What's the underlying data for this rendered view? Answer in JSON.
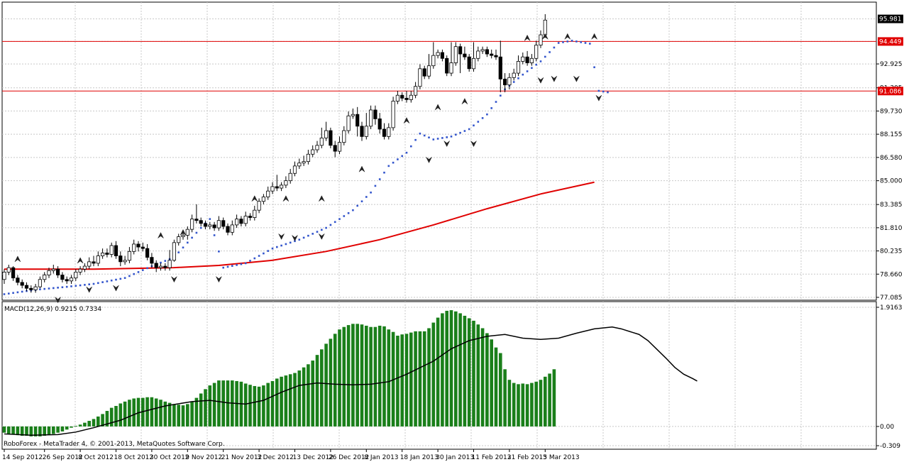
{
  "chart_data": {
    "type": "candlestick",
    "main": {
      "y_ticks": [
        "77.085",
        "78.660",
        "80.235",
        "81.810",
        "83.385",
        "85.000",
        "86.580",
        "88.155",
        "89.730",
        "91.305",
        "92.925",
        "94.449",
        "95.981"
      ],
      "ylim": [
        77.085,
        96.3
      ],
      "levels": [
        {
          "price": 94.449,
          "label": "94.449"
        },
        {
          "price": 91.086,
          "label": "91.086"
        }
      ],
      "current_price": {
        "price": 95.981,
        "label": "95.981"
      },
      "ma_color": "#e00000",
      "sar_color": "#3355cc",
      "level_color": "#e00000",
      "ma": [
        [
          0,
          79.0
        ],
        [
          20,
          79.0
        ],
        [
          38,
          79.1
        ],
        [
          48,
          79.25
        ],
        [
          60,
          79.6
        ],
        [
          72,
          80.2
        ],
        [
          84,
          81.0
        ],
        [
          96,
          82.0
        ],
        [
          108,
          83.1
        ],
        [
          120,
          84.1
        ],
        [
          132,
          84.9
        ]
      ],
      "sar": [
        [
          0,
          77.3
        ],
        [
          7,
          77.6
        ],
        [
          14,
          77.8
        ],
        [
          20,
          78.0
        ],
        [
          27,
          78.4
        ],
        [
          33,
          79.2
        ],
        [
          38,
          79.8
        ],
        [
          41,
          80.8
        ],
        [
          44,
          81.8
        ],
        [
          46,
          82.4
        ],
        [
          49,
          79.1
        ],
        [
          54,
          79.4
        ],
        [
          60,
          80.4
        ],
        [
          66,
          81.0
        ],
        [
          72,
          81.8
        ],
        [
          78,
          83.0
        ],
        [
          82,
          84.2
        ],
        [
          86,
          86.0
        ],
        [
          90,
          86.9
        ],
        [
          93,
          88.2
        ],
        [
          96,
          87.8
        ],
        [
          100,
          88.0
        ],
        [
          104,
          88.5
        ],
        [
          108,
          89.5
        ],
        [
          112,
          91.2
        ],
        [
          116,
          92.2
        ],
        [
          120,
          93.1
        ],
        [
          124,
          94.35
        ],
        [
          127,
          94.5
        ],
        [
          131,
          94.3
        ],
        [
          133,
          91.1
        ],
        [
          135,
          91.0
        ]
      ],
      "candles": [
        [
          78.3,
          78.8,
          78.0,
          79.0
        ],
        [
          78.8,
          79.1,
          78.6,
          79.3
        ],
        [
          79.1,
          78.4,
          78.2,
          79.2
        ],
        [
          78.4,
          78.1,
          77.9,
          78.6
        ],
        [
          78.1,
          77.9,
          77.7,
          78.3
        ],
        [
          77.9,
          77.7,
          77.5,
          78.1
        ],
        [
          77.7,
          77.6,
          77.4,
          77.9
        ],
        [
          77.6,
          77.8,
          77.4,
          78.0
        ],
        [
          77.8,
          78.3,
          77.7,
          78.5
        ],
        [
          78.3,
          78.6,
          78.1,
          78.8
        ],
        [
          78.6,
          78.9,
          78.4,
          79.1
        ],
        [
          78.9,
          79.0,
          78.7,
          79.3
        ],
        [
          79.0,
          78.6,
          78.4,
          79.2
        ],
        [
          78.6,
          78.3,
          78.1,
          78.8
        ],
        [
          78.3,
          78.2,
          78.0,
          78.5
        ],
        [
          78.2,
          78.4,
          78.0,
          78.6
        ],
        [
          78.4,
          78.8,
          78.2,
          79.0
        ],
        [
          78.8,
          79.0,
          78.6,
          79.2
        ],
        [
          79.0,
          79.2,
          78.8,
          79.4
        ],
        [
          79.2,
          79.5,
          79.0,
          79.8
        ],
        [
          79.5,
          79.4,
          79.2,
          79.9
        ],
        [
          79.4,
          79.9,
          79.2,
          80.2
        ],
        [
          79.9,
          80.1,
          79.7,
          80.4
        ],
        [
          80.1,
          80.0,
          79.8,
          80.4
        ],
        [
          80.0,
          80.6,
          79.8,
          80.8
        ],
        [
          80.6,
          79.9,
          79.7,
          80.9
        ],
        [
          79.9,
          79.5,
          79.2,
          80.2
        ],
        [
          79.5,
          79.6,
          79.3,
          79.9
        ],
        [
          79.6,
          80.2,
          79.4,
          80.5
        ],
        [
          80.2,
          80.7,
          80.0,
          81.0
        ],
        [
          80.7,
          80.5,
          80.2,
          80.9
        ],
        [
          80.5,
          80.4,
          80.2,
          80.8
        ],
        [
          80.4,
          79.8,
          79.6,
          80.7
        ],
        [
          79.8,
          79.4,
          79.1,
          80.1
        ],
        [
          79.4,
          79.1,
          78.8,
          79.6
        ],
        [
          79.1,
          79.2,
          78.9,
          79.4
        ],
        [
          79.2,
          79.1,
          78.9,
          79.4
        ],
        [
          79.1,
          79.6,
          78.9,
          80.3
        ],
        [
          79.6,
          80.8,
          79.5,
          81.0
        ],
        [
          80.8,
          81.2,
          80.6,
          81.4
        ],
        [
          81.2,
          81.3,
          81.0,
          81.5
        ],
        [
          81.3,
          81.7,
          81.0,
          81.9
        ],
        [
          81.7,
          82.4,
          81.5,
          82.7
        ],
        [
          82.4,
          82.3,
          82.1,
          83.4
        ],
        [
          82.3,
          82.1,
          81.9,
          82.5
        ],
        [
          82.1,
          81.9,
          81.7,
          82.3
        ],
        [
          81.9,
          82.0,
          81.7,
          82.2
        ],
        [
          82.0,
          81.8,
          81.6,
          82.2
        ],
        [
          81.8,
          82.3,
          81.6,
          82.6
        ],
        [
          82.3,
          81.9,
          81.7,
          82.5
        ],
        [
          81.9,
          81.5,
          81.3,
          82.1
        ],
        [
          81.5,
          82.0,
          81.3,
          82.3
        ],
        [
          82.0,
          82.4,
          81.8,
          82.7
        ],
        [
          82.4,
          82.1,
          81.9,
          82.6
        ],
        [
          82.1,
          82.6,
          81.9,
          82.9
        ],
        [
          82.6,
          82.5,
          82.3,
          82.8
        ],
        [
          82.5,
          83.0,
          82.3,
          83.3
        ],
        [
          83.0,
          83.6,
          82.8,
          83.8
        ],
        [
          83.6,
          83.9,
          83.4,
          84.1
        ],
        [
          83.9,
          84.3,
          83.7,
          84.6
        ],
        [
          84.3,
          84.6,
          84.1,
          84.9
        ],
        [
          84.6,
          84.5,
          84.3,
          85.4
        ],
        [
          84.5,
          84.7,
          84.3,
          84.9
        ],
        [
          84.7,
          85.0,
          84.5,
          85.3
        ],
        [
          85.0,
          85.5,
          84.8,
          85.8
        ],
        [
          85.5,
          86.0,
          85.3,
          86.3
        ],
        [
          86.0,
          86.2,
          85.8,
          86.5
        ],
        [
          86.2,
          86.3,
          86.0,
          86.7
        ],
        [
          86.3,
          86.8,
          86.1,
          87.1
        ],
        [
          86.8,
          87.1,
          86.6,
          87.4
        ],
        [
          87.1,
          87.4,
          86.9,
          87.7
        ],
        [
          87.4,
          87.9,
          87.2,
          88.6
        ],
        [
          87.9,
          88.4,
          87.7,
          89.0
        ],
        [
          88.4,
          87.4,
          87.2,
          88.6
        ],
        [
          87.4,
          87.0,
          86.6,
          87.7
        ],
        [
          87.0,
          87.6,
          86.8,
          88.0
        ],
        [
          87.6,
          88.4,
          87.4,
          88.7
        ],
        [
          88.4,
          89.4,
          88.2,
          89.7
        ],
        [
          89.4,
          89.5,
          89.2,
          89.9
        ],
        [
          89.5,
          88.7,
          88.0,
          90.0
        ],
        [
          88.7,
          88.0,
          87.7,
          89.0
        ],
        [
          88.0,
          88.7,
          87.8,
          89.6
        ],
        [
          88.7,
          89.8,
          88.5,
          90.1
        ],
        [
          89.8,
          89.2,
          88.8,
          90.1
        ],
        [
          89.2,
          88.5,
          88.2,
          89.6
        ],
        [
          88.5,
          88.0,
          87.8,
          88.9
        ],
        [
          88.0,
          88.6,
          87.8,
          88.9
        ],
        [
          88.6,
          90.4,
          88.4,
          90.7
        ],
        [
          90.4,
          90.8,
          90.2,
          91.1
        ],
        [
          90.8,
          90.6,
          90.4,
          91.0
        ],
        [
          90.6,
          90.5,
          90.3,
          91.1
        ],
        [
          90.5,
          90.8,
          90.3,
          91.1
        ],
        [
          90.8,
          91.4,
          90.6,
          91.7
        ],
        [
          91.4,
          92.6,
          91.2,
          92.9
        ],
        [
          92.6,
          92.1,
          91.9,
          92.8
        ],
        [
          92.1,
          92.8,
          91.9,
          93.6
        ],
        [
          92.8,
          93.5,
          92.6,
          94.4
        ],
        [
          93.5,
          93.7,
          93.3,
          93.9
        ],
        [
          93.7,
          93.3,
          93.1,
          93.9
        ],
        [
          93.3,
          92.3,
          92.1,
          93.5
        ],
        [
          92.3,
          93.0,
          92.1,
          94.4
        ],
        [
          93.0,
          94.1,
          92.8,
          94.4
        ],
        [
          94.1,
          93.6,
          92.3,
          94.3
        ],
        [
          93.6,
          93.4,
          93.2,
          94.1
        ],
        [
          93.4,
          92.6,
          92.4,
          93.6
        ],
        [
          92.6,
          93.3,
          92.4,
          94.4
        ],
        [
          93.3,
          93.8,
          93.1,
          94.1
        ],
        [
          93.8,
          93.9,
          93.6,
          94.1
        ],
        [
          93.9,
          93.6,
          93.4,
          94.1
        ],
        [
          93.6,
          93.5,
          93.3,
          93.9
        ],
        [
          93.5,
          93.4,
          93.2,
          93.9
        ],
        [
          93.4,
          91.9,
          91.0,
          94.5
        ],
        [
          91.9,
          91.5,
          91.0,
          92.3
        ],
        [
          91.5,
          92.0,
          91.2,
          92.3
        ],
        [
          92.0,
          92.3,
          91.8,
          92.6
        ],
        [
          92.3,
          93.1,
          92.1,
          93.5
        ],
        [
          93.1,
          93.4,
          92.9,
          93.7
        ],
        [
          93.4,
          93.0,
          92.8,
          93.8
        ],
        [
          93.0,
          93.3,
          92.8,
          93.6
        ],
        [
          93.3,
          94.2,
          93.1,
          94.5
        ],
        [
          94.2,
          94.9,
          94.0,
          95.2
        ],
        [
          94.9,
          95.9,
          94.7,
          96.3
        ]
      ],
      "fractals_up": [
        [
          3,
          79.5
        ],
        [
          17,
          79.4
        ],
        [
          35,
          81.1
        ],
        [
          40,
          81.3
        ],
        [
          56,
          83.6
        ],
        [
          63,
          83.6
        ],
        [
          71,
          83.6
        ],
        [
          80,
          85.6
        ],
        [
          90,
          88.9
        ],
        [
          97,
          89.8
        ],
        [
          103,
          90.2
        ],
        [
          117,
          94.5
        ],
        [
          121,
          94.6
        ],
        [
          126,
          94.6
        ],
        [
          132,
          94.6
        ]
      ],
      "fractals_down": [
        [
          12,
          77.1
        ],
        [
          19,
          77.8
        ],
        [
          25,
          77.9
        ],
        [
          38,
          78.5
        ],
        [
          48,
          78.5
        ],
        [
          62,
          81.4
        ],
        [
          65,
          81.3
        ],
        [
          71,
          81.4
        ],
        [
          95,
          86.6
        ],
        [
          99,
          87.7
        ],
        [
          105,
          87.7
        ],
        [
          120,
          92.0
        ],
        [
          123,
          92.1
        ],
        [
          128,
          92.1
        ],
        [
          133,
          90.8
        ]
      ]
    },
    "macd": {
      "title": "MACD(12,26,9) 0.9215 0.7334",
      "y_ticks": [
        "1.9163",
        "0.00",
        "-0.309"
      ],
      "ylim": [
        -0.309,
        1.9163
      ],
      "histogram_color": "#1a7f1a",
      "signal_color": "#000000",
      "histogram": [
        -0.1,
        -0.12,
        -0.13,
        -0.14,
        -0.15,
        -0.15,
        -0.16,
        -0.16,
        -0.16,
        -0.15,
        -0.14,
        -0.12,
        -0.1,
        -0.08,
        -0.05,
        -0.02,
        0.01,
        0.03,
        0.06,
        0.09,
        0.12,
        0.16,
        0.2,
        0.25,
        0.3,
        0.33,
        0.37,
        0.4,
        0.43,
        0.45,
        0.46,
        0.46,
        0.47,
        0.47,
        0.45,
        0.43,
        0.4,
        0.38,
        0.36,
        0.35,
        0.34,
        0.36,
        0.4,
        0.46,
        0.53,
        0.6,
        0.66,
        0.7,
        0.74,
        0.74,
        0.74,
        0.74,
        0.73,
        0.72,
        0.69,
        0.67,
        0.65,
        0.64,
        0.66,
        0.7,
        0.73,
        0.77,
        0.8,
        0.82,
        0.84,
        0.86,
        0.9,
        0.95,
        1.0,
        1.06,
        1.15,
        1.24,
        1.33,
        1.41,
        1.49,
        1.56,
        1.6,
        1.63,
        1.65,
        1.65,
        1.64,
        1.62,
        1.6,
        1.6,
        1.62,
        1.61,
        1.56,
        1.52,
        1.46,
        1.48,
        1.49,
        1.51,
        1.53,
        1.53,
        1.53,
        1.58,
        1.67,
        1.75,
        1.82,
        1.86,
        1.87,
        1.85,
        1.82,
        1.78,
        1.74,
        1.7,
        1.64,
        1.58,
        1.5,
        1.4,
        1.27,
        1.18,
        0.92,
        0.75,
        0.7,
        0.68,
        0.69,
        0.68,
        0.7,
        0.72,
        0.75,
        0.8,
        0.85,
        0.92
      ],
      "signal": [
        [
          0,
          -0.12
        ],
        [
          6,
          -0.14
        ],
        [
          12,
          -0.13
        ],
        [
          16,
          -0.09
        ],
        [
          20,
          -0.02
        ],
        [
          26,
          0.1
        ],
        [
          30,
          0.22
        ],
        [
          36,
          0.33
        ],
        [
          42,
          0.4
        ],
        [
          46,
          0.42
        ],
        [
          50,
          0.38
        ],
        [
          54,
          0.36
        ],
        [
          58,
          0.42
        ],
        [
          62,
          0.55
        ],
        [
          66,
          0.66
        ],
        [
          70,
          0.7
        ],
        [
          74,
          0.68
        ],
        [
          78,
          0.67
        ],
        [
          82,
          0.68
        ],
        [
          86,
          0.72
        ],
        [
          90,
          0.84
        ],
        [
          96,
          1.05
        ],
        [
          100,
          1.25
        ],
        [
          104,
          1.38
        ],
        [
          108,
          1.45
        ],
        [
          112,
          1.48
        ],
        [
          116,
          1.42
        ],
        [
          120,
          1.4
        ],
        [
          124,
          1.42
        ],
        [
          128,
          1.5
        ],
        [
          132,
          1.57
        ],
        [
          136,
          1.6
        ],
        [
          138,
          1.57
        ],
        [
          142,
          1.48
        ],
        [
          144,
          1.38
        ],
        [
          148,
          1.1
        ],
        [
          150,
          0.95
        ],
        [
          152,
          0.84
        ],
        [
          154,
          0.77
        ],
        [
          155,
          0.73
        ]
      ]
    },
    "x_labels": [
      {
        "i": 0,
        "text": "14 Sep 2012"
      },
      {
        "i": 9,
        "text": "26 Sep 2012"
      },
      {
        "i": 17,
        "text": "8 Oct 2012"
      },
      {
        "i": 25,
        "text": "18 Oct 2012"
      },
      {
        "i": 33,
        "text": "30 Oct 2012"
      },
      {
        "i": 41,
        "text": "9 Nov 2012"
      },
      {
        "i": 49,
        "text": "21 Nov 2012"
      },
      {
        "i": 57,
        "text": "3 Dec 2012"
      },
      {
        "i": 65,
        "text": "13 Dec 2012"
      },
      {
        "i": 73,
        "text": "26 Dec 2012"
      },
      {
        "i": 81,
        "text": "8 Jan 2013"
      },
      {
        "i": 89,
        "text": "18 Jan 2013"
      },
      {
        "i": 97,
        "text": "30 Jan 2013"
      },
      {
        "i": 105,
        "text": "11 Feb 2013"
      },
      {
        "i": 113,
        "text": "21 Feb 2013"
      },
      {
        "i": 121,
        "text": "5 Mar 2013"
      }
    ],
    "watermark": "RoboForex - MetaTrader 4, © 2001-2013, MetaQuotes Software Corp."
  }
}
